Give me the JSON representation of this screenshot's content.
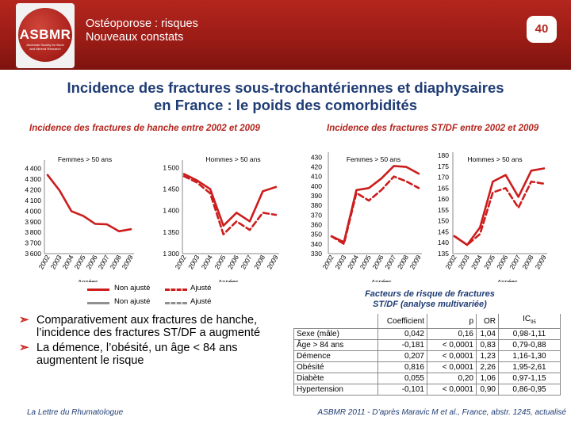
{
  "header": {
    "title_line1": "Ostéoporose : risques",
    "title_line2": "Nouveaux constats",
    "logo_text": "ASBMR",
    "logo_subtext": "American Society for Bone and Mineral Research",
    "page_number": "40"
  },
  "slide": {
    "title_line1": "Incidence des fractures sous-trochantériennes et diaphysaires",
    "title_line2": "en France : le poids des comorbidités"
  },
  "colors": {
    "header_red": "#b3261e",
    "series_red": "#cc1d1d",
    "navy": "#1f3c74",
    "bullet_red": "#c7261f"
  },
  "legend": {
    "non_ajuste": "Non ajusté",
    "ajuste": "Ajusté",
    "row1_color": "#cc1d1d",
    "row2_color": "#909090"
  },
  "bullets": [
    "Comparativement aux fractures de hanche, l’incidence des fractures ST/DF a augmenté",
    "La démence, l’obésité, un âge < 84 ans augmentent le risque"
  ],
  "bullet_icon": "arrow-right-circle-icon",
  "footer": {
    "source": "La Lettre du Rhumatologue",
    "reference": "ASBMR 2011 - D’après Maravic M et al., France, abstr. 1245, actualisé"
  },
  "chart_data": [
    {
      "type": "line",
      "group_title": "Incidence des fractures de hanche entre 2002 et 2009",
      "title": "Femmes > 50 ans",
      "xlabel": "Années",
      "categories": [
        "2002",
        "2003",
        "2004",
        "2005",
        "2006",
        "2007",
        "2008",
        "2009"
      ],
      "yticks": [
        3600,
        3700,
        3800,
        3900,
        4000,
        4100,
        4200,
        4300,
        4400
      ],
      "ylim": [
        3600,
        4450
      ],
      "series": [
        {
          "name": "Non ajusté",
          "style": "solid",
          "values": [
            4340,
            4195,
            4000,
            3955,
            3880,
            3875,
            3810,
            3830
          ]
        }
      ]
    },
    {
      "type": "line",
      "title": "Hommes > 50 ans",
      "xlabel": "Années",
      "categories": [
        "2002",
        "2003",
        "2004",
        "2005",
        "2006",
        "2007",
        "2008",
        "2009"
      ],
      "yticks": [
        1300,
        1350,
        1400,
        1450,
        1500
      ],
      "ylim": [
        1300,
        1510
      ],
      "series": [
        {
          "name": "Non ajusté",
          "style": "solid",
          "values": [
            1485,
            1470,
            1450,
            1365,
            1395,
            1375,
            1445,
            1455
          ]
        },
        {
          "name": "Ajusté",
          "style": "dashed",
          "values": [
            1480,
            1465,
            1440,
            1345,
            1375,
            1355,
            1395,
            1390
          ]
        }
      ]
    },
    {
      "type": "line",
      "group_title": "Incidence des fractures ST/DF entre 2002 et 2009",
      "title": "Femmes > 50 ans",
      "xlabel": "Années",
      "categories": [
        "2002",
        "2003",
        "2004",
        "2005",
        "2006",
        "2007",
        "2008",
        "2009"
      ],
      "yticks": [
        330,
        340,
        350,
        360,
        370,
        380,
        390,
        400,
        410,
        420,
        430
      ],
      "ylim": [
        330,
        432
      ],
      "series": [
        {
          "name": "Non ajusté",
          "style": "solid",
          "values": [
            348,
            342,
            396,
            398,
            408,
            421,
            420,
            413
          ]
        },
        {
          "name": "Ajusté",
          "style": "dashed",
          "values": [
            348,
            340,
            393,
            385,
            396,
            410,
            405,
            398
          ]
        }
      ]
    },
    {
      "type": "line",
      "title": "Hommes > 50 ans",
      "xlabel": "Années",
      "categories": [
        "2002",
        "2003",
        "2004",
        "2005",
        "2006",
        "2007",
        "2008",
        "2009"
      ],
      "yticks": [
        135,
        140,
        145,
        150,
        155,
        160,
        165,
        170,
        175,
        180
      ],
      "ylim": [
        135,
        180
      ],
      "series": [
        {
          "name": "Non ajusté",
          "style": "solid",
          "values": [
            143,
            139,
            147,
            168,
            171,
            161,
            173,
            174
          ]
        },
        {
          "name": "Ajusté",
          "style": "dashed",
          "values": [
            143,
            139,
            144,
            163,
            165,
            156,
            168,
            167
          ]
        }
      ]
    }
  ],
  "risk_table": {
    "title_line1": "Facteurs de risque de fractures",
    "title_line2": "ST/DF (analyse multivariée)",
    "headers": {
      "coef": "Coefficient",
      "p": "p",
      "or": "OR",
      "ic": "IC",
      "ic_sub": "95"
    },
    "rows": [
      {
        "label": "Sexe (mâle)",
        "coef": "0,042",
        "p": "0,16",
        "or": "1,04",
        "ic": "0,98-1,11"
      },
      {
        "label": "Âge > 84 ans",
        "coef": "-0,181",
        "p": "< 0,0001",
        "or": "0,83",
        "ic": "0,79-0,88"
      },
      {
        "label": "Démence",
        "coef": "0,207",
        "p": "< 0,0001",
        "or": "1,23",
        "ic": "1,16-1,30"
      },
      {
        "label": "Obésité",
        "coef": "0,816",
        "p": "< 0,0001",
        "or": "2,26",
        "ic": "1,95-2,61"
      },
      {
        "label": "Diabète",
        "coef": "0,055",
        "p": "0,20",
        "or": "1,06",
        "ic": "0,97-1,15"
      },
      {
        "label": "Hypertension",
        "coef": "-0,101",
        "p": "< 0,0001",
        "or": "0,90",
        "ic": "0,86-0,95"
      }
    ]
  }
}
